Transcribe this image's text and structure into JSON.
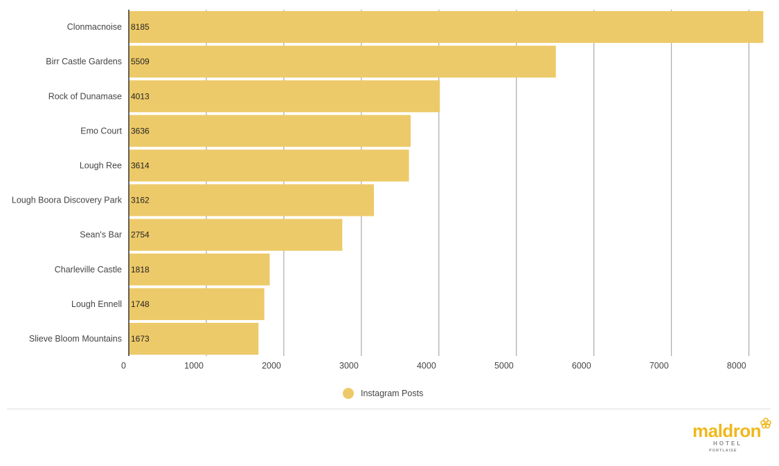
{
  "chart_data": {
    "type": "bar",
    "orientation": "horizontal",
    "categories": [
      "Clonmacnoise",
      "Birr Castle Gardens",
      "Rock of Dunamase",
      "Emo Court",
      "Lough Ree",
      "Lough Boora Discovery Park",
      "Sean's Bar",
      "Charleville Castle",
      "Lough Ennell",
      "Slieve Bloom Mountains"
    ],
    "series": [
      {
        "name": "Instagram Posts",
        "values": [
          8185,
          5509,
          4013,
          3636,
          3614,
          3162,
          2754,
          1818,
          1748,
          1673
        ]
      }
    ],
    "xlim": [
      0,
      8200
    ],
    "xticks": [
      0,
      1000,
      2000,
      3000,
      4000,
      5000,
      6000,
      7000,
      8000
    ],
    "grid": true,
    "legend": "bottom-center",
    "bar_color": "#edca69",
    "title": "",
    "xlabel": "",
    "ylabel": ""
  },
  "legend": {
    "label": "Instagram Posts",
    "color": "#edca69"
  },
  "logo": {
    "brand": "maldron",
    "hotel": "HOTEL",
    "location": "PORTLAISE",
    "color": "#f0b81c"
  }
}
